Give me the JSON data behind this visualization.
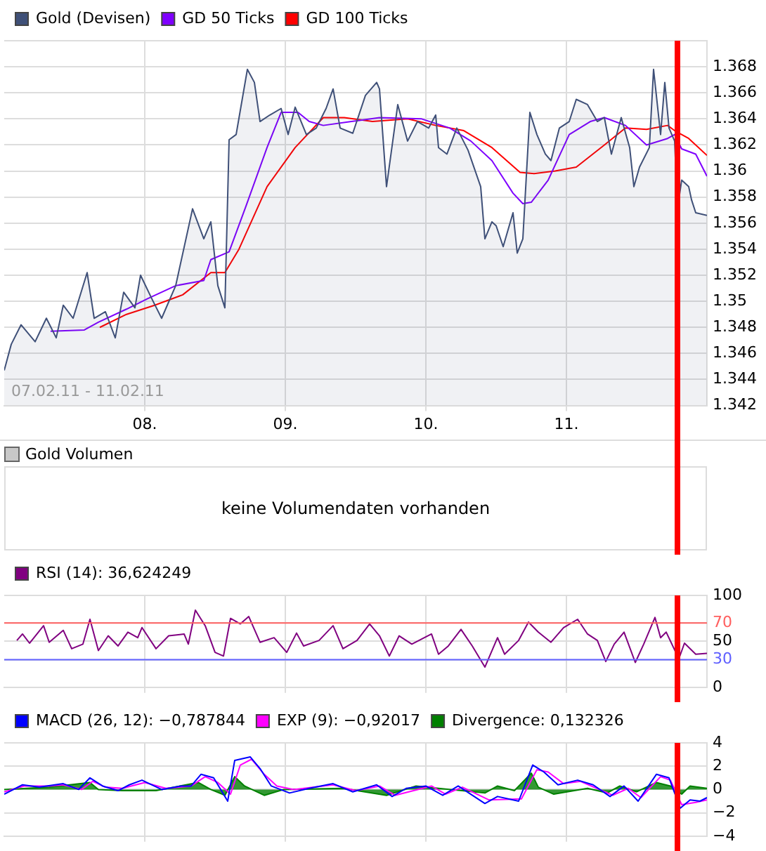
{
  "chart_data": [
    {
      "type": "line",
      "legend": "top left",
      "grid": true,
      "xlim": [
        7,
        12
      ],
      "xticks": [
        {
          "value": 8,
          "label": "08."
        },
        {
          "value": 9,
          "label": "09."
        },
        {
          "value": 10,
          "label": "10."
        },
        {
          "value": 11,
          "label": "11."
        }
      ],
      "ylim": [
        1.342,
        1.37
      ],
      "yticks": [
        1.342,
        1.344,
        1.346,
        1.348,
        1.35,
        1.352,
        1.354,
        1.356,
        1.358,
        1.36,
        1.362,
        1.364,
        1.366,
        1.368,
        {
          "value": 1.37,
          "label": null
        }
      ],
      "annotations": [
        "07.02.11 - 11.02.11"
      ],
      "ref_lines": [
        {
          "axis": "x",
          "value": 11.79,
          "color": "#ff0000"
        }
      ],
      "series": [
        {
          "name": "Gold (Devisen)",
          "type": "area",
          "color": "#3f5078",
          "x": [
            7.0,
            7.05,
            7.12,
            7.22,
            7.3,
            7.37,
            7.42,
            7.49,
            7.59,
            7.64,
            7.72,
            7.79,
            7.85,
            7.93,
            7.97,
            8.05,
            8.12,
            8.22,
            8.34,
            8.42,
            8.47,
            8.52,
            8.57,
            8.6,
            8.65,
            8.69,
            8.73,
            8.78,
            8.82,
            8.89,
            8.97,
            9.02,
            9.07,
            9.15,
            9.22,
            9.29,
            9.34,
            9.39,
            9.48,
            9.57,
            9.65,
            9.67,
            9.72,
            9.8,
            9.87,
            9.94,
            10.02,
            10.07,
            10.09,
            10.15,
            10.22,
            10.3,
            10.39,
            10.42,
            10.47,
            10.5,
            10.55,
            10.62,
            10.65,
            10.69,
            10.74,
            10.79,
            10.85,
            10.89,
            10.95,
            11.02,
            11.07,
            11.15,
            11.22,
            11.27,
            11.32,
            11.39,
            11.45,
            11.48,
            11.52,
            11.59,
            11.62,
            11.67,
            11.7,
            11.73,
            11.77,
            11.79,
            11.82,
            11.87,
            11.89,
            11.92,
            12.0
          ],
          "values": [
            1.3447,
            1.3467,
            1.3482,
            1.3469,
            1.3487,
            1.3472,
            1.3497,
            1.3487,
            1.3522,
            1.3487,
            1.3492,
            1.3472,
            1.3507,
            1.3495,
            1.352,
            1.3502,
            1.3487,
            1.3512,
            1.3571,
            1.3548,
            1.3561,
            1.3512,
            1.3495,
            1.3624,
            1.3628,
            1.3653,
            1.3678,
            1.3668,
            1.3638,
            1.3643,
            1.3648,
            1.3628,
            1.3649,
            1.3628,
            1.3633,
            1.3648,
            1.3663,
            1.3633,
            1.3629,
            1.3658,
            1.3668,
            1.3663,
            1.3588,
            1.3651,
            1.3623,
            1.3638,
            1.3633,
            1.3643,
            1.3618,
            1.3613,
            1.3633,
            1.3616,
            1.3588,
            1.3548,
            1.3561,
            1.3558,
            1.3542,
            1.3568,
            1.3537,
            1.3548,
            1.3645,
            1.3628,
            1.3613,
            1.3608,
            1.3633,
            1.3638,
            1.3655,
            1.3651,
            1.3638,
            1.3641,
            1.3613,
            1.3641,
            1.3618,
            1.3588,
            1.3603,
            1.3618,
            1.3678,
            1.3628,
            1.3668,
            1.3633,
            1.3623,
            1.3571,
            1.3593,
            1.3588,
            1.3578,
            1.3568,
            1.3566
          ]
        },
        {
          "name": "GD 50 Ticks",
          "color": "#7f00ff",
          "x": [
            7.33,
            7.57,
            7.67,
            7.87,
            8.02,
            8.22,
            8.42,
            8.47,
            8.6,
            8.72,
            8.87,
            8.97,
            9.09,
            9.17,
            9.27,
            9.47,
            9.67,
            9.97,
            10.17,
            10.32,
            10.47,
            10.62,
            10.69,
            10.75,
            10.87,
            11.02,
            11.17,
            11.27,
            11.42,
            11.57,
            11.72,
            11.77,
            11.82,
            11.92,
            12.0
          ],
          "values": [
            1.3477,
            1.3478,
            1.3484,
            1.3494,
            1.3502,
            1.3512,
            1.3516,
            1.3532,
            1.3538,
            1.3573,
            1.3618,
            1.3645,
            1.3645,
            1.3638,
            1.3635,
            1.3638,
            1.3641,
            1.364,
            1.3633,
            1.3623,
            1.3608,
            1.3583,
            1.3575,
            1.3576,
            1.3593,
            1.3628,
            1.3638,
            1.3641,
            1.3635,
            1.362,
            1.3625,
            1.3628,
            1.3617,
            1.3613,
            1.3596
          ]
        },
        {
          "name": "GD 100 Ticks",
          "color": "#ff0000",
          "x": [
            7.68,
            7.87,
            8.07,
            8.27,
            8.47,
            8.57,
            8.67,
            8.87,
            9.07,
            9.27,
            9.42,
            9.62,
            9.87,
            10.07,
            10.27,
            10.47,
            10.67,
            10.77,
            10.92,
            11.07,
            11.27,
            11.42,
            11.57,
            11.72,
            11.77,
            11.87,
            12.0
          ],
          "values": [
            1.348,
            1.349,
            1.3497,
            1.3505,
            1.3522,
            1.3522,
            1.354,
            1.3588,
            1.3618,
            1.3641,
            1.3641,
            1.3638,
            1.364,
            1.3635,
            1.3631,
            1.3618,
            1.3599,
            1.3598,
            1.36,
            1.3603,
            1.362,
            1.3633,
            1.3632,
            1.3635,
            1.3631,
            1.3625,
            1.3612
          ]
        }
      ]
    },
    {
      "type": "other",
      "title": "Gold Volumen",
      "annotations": [
        "keine Volumendaten vorhanden"
      ]
    },
    {
      "type": "line",
      "legend": "top left",
      "grid": true,
      "tick_labels": "y",
      "xlim": [
        7,
        12
      ],
      "xticks": [
        {
          "value": 8,
          "label": null
        },
        {
          "value": 9,
          "label": null
        },
        {
          "value": 10,
          "label": null
        },
        {
          "value": 11,
          "label": null
        }
      ],
      "ylim": [
        0,
        100
      ],
      "yticks": [
        0,
        30,
        50,
        70,
        100
      ],
      "ref_lines": [
        {
          "axis": "y",
          "value": 70,
          "color": "#ff6060"
        },
        {
          "axis": "y",
          "value": 30,
          "color": "#6060ff"
        },
        {
          "axis": "x",
          "value": 11.79,
          "color": "#ff0000"
        }
      ],
      "series": [
        {
          "name": "RSI (14): 36,624249",
          "color": "#800080",
          "x": [
            7.09,
            7.13,
            7.18,
            7.28,
            7.32,
            7.42,
            7.48,
            7.56,
            7.61,
            7.67,
            7.74,
            7.81,
            7.88,
            7.95,
            7.98,
            8.08,
            8.17,
            8.28,
            8.31,
            8.36,
            8.43,
            8.5,
            8.56,
            8.61,
            8.68,
            8.74,
            8.82,
            8.92,
            9.01,
            9.08,
            9.13,
            9.24,
            9.34,
            9.41,
            9.51,
            9.6,
            9.67,
            9.74,
            9.81,
            9.9,
            10.04,
            10.09,
            10.16,
            10.25,
            10.33,
            10.42,
            10.51,
            10.56,
            10.66,
            10.73,
            10.8,
            10.89,
            10.98,
            11.08,
            11.15,
            11.22,
            11.28,
            11.34,
            11.41,
            11.49,
            11.55,
            11.63,
            11.67,
            11.71,
            11.8,
            11.84,
            11.92,
            12.0
          ],
          "values": [
            51,
            58,
            48,
            67,
            49,
            62,
            42,
            47,
            74,
            40,
            56,
            45,
            60,
            54,
            65,
            42,
            56,
            58,
            47,
            84,
            67,
            38,
            34,
            75,
            69,
            77,
            49,
            54,
            38,
            59,
            45,
            51,
            67,
            42,
            51,
            69,
            56,
            34,
            56,
            47,
            58,
            36,
            45,
            63,
            45,
            22,
            54,
            36,
            51,
            71,
            60,
            49,
            65,
            74,
            58,
            51,
            28,
            47,
            60,
            27,
            47,
            76,
            54,
            60,
            31,
            48,
            36,
            37
          ]
        }
      ]
    },
    {
      "type": "line",
      "legend": "top left",
      "grid": true,
      "tick_labels": "y",
      "xlim": [
        7,
        12
      ],
      "xticks": [
        {
          "value": 8,
          "label": null
        },
        {
          "value": 9,
          "label": null
        },
        {
          "value": 10,
          "label": null
        },
        {
          "value": 11,
          "label": null
        }
      ],
      "ylim": [
        -4,
        4
      ],
      "yticks": [
        {
          "value": -4,
          "label": "−4"
        },
        {
          "value": -2,
          "label": "−2"
        },
        0,
        2,
        4
      ],
      "ref_lines": [
        {
          "axis": "x",
          "value": 11.79,
          "color": "#ff0000"
        }
      ],
      "series": [
        {
          "name": "MACD (26, 12): −0,787844",
          "color": "#0000ff",
          "x": [
            7.0,
            7.13,
            7.25,
            7.42,
            7.53,
            7.61,
            7.7,
            7.81,
            7.89,
            7.98,
            8.12,
            8.26,
            8.33,
            8.4,
            8.49,
            8.59,
            8.64,
            8.75,
            8.82,
            8.9,
            9.03,
            9.17,
            9.34,
            9.48,
            9.65,
            9.76,
            9.86,
            10.0,
            10.12,
            10.23,
            10.42,
            10.51,
            10.66,
            10.76,
            10.84,
            10.94,
            11.08,
            11.19,
            11.31,
            11.41,
            11.51,
            11.64,
            11.73,
            11.81,
            11.88,
            11.95,
            12.0
          ],
          "values": [
            -0.4,
            0.4,
            0.2,
            0.5,
            0,
            1,
            0.3,
            -0.1,
            0.4,
            0.8,
            0,
            0.3,
            0.3,
            1.3,
            1,
            -1,
            2.5,
            2.8,
            1.8,
            0.3,
            -0.3,
            0.1,
            0.5,
            -0.2,
            0.4,
            -0.6,
            0.1,
            0.3,
            -0.5,
            0.3,
            -1.2,
            -0.6,
            -1,
            2.1,
            1.5,
            0.4,
            0.8,
            0.4,
            -0.6,
            0.3,
            -1,
            1.3,
            1,
            -1.6,
            -0.9,
            -1,
            -0.7
          ]
        },
        {
          "name": "EXP (9): −0,92017",
          "color": "#ff00ff",
          "x": [
            7.0,
            7.14,
            7.32,
            7.42,
            7.55,
            7.63,
            7.72,
            7.84,
            8.0,
            8.15,
            8.33,
            8.43,
            8.52,
            8.61,
            8.68,
            8.76,
            8.85,
            8.94,
            9.06,
            9.34,
            9.5,
            9.67,
            9.78,
            10.04,
            10.14,
            10.26,
            10.45,
            10.68,
            10.79,
            10.87,
            10.98,
            11.1,
            11.33,
            11.44,
            11.53,
            11.67,
            11.74,
            11.82,
            11.92,
            12.0
          ],
          "values": [
            -0.2,
            0.3,
            0.3,
            0.4,
            0,
            0.7,
            0.2,
            0.1,
            0.6,
            0.1,
            0.3,
            1.1,
            0.6,
            -0.4,
            2.1,
            2.6,
            1.3,
            0.3,
            0,
            0.4,
            -0.1,
            0.3,
            -0.5,
            0.3,
            -0.4,
            0.2,
            -0.9,
            -0.8,
            1.7,
            1.5,
            0.5,
            0.7,
            -0.5,
            0.1,
            -0.7,
            1.1,
            0.8,
            -1.3,
            -1.1,
            -0.9
          ]
        },
        {
          "name": "Divergence: 0,132326",
          "type": "area",
          "color": "#008000",
          "x": [
            7.0,
            7.32,
            7.61,
            7.67,
            7.84,
            8.08,
            8.38,
            8.47,
            8.57,
            8.64,
            8.71,
            8.85,
            8.99,
            9.41,
            9.72,
            9.93,
            10.42,
            10.51,
            10.63,
            10.75,
            10.8,
            10.91,
            11.15,
            11.29,
            11.38,
            11.5,
            11.64,
            11.74,
            11.82,
            11.88,
            12.0
          ],
          "values": [
            0,
            0.2,
            0.6,
            0,
            -0.1,
            -0.1,
            0.6,
            0,
            -0.5,
            1.1,
            0.3,
            -0.5,
            0,
            0.1,
            -0.5,
            0.3,
            -0.3,
            0.3,
            -0.1,
            1.4,
            0.2,
            -0.4,
            0.1,
            -0.3,
            0.3,
            -0.2,
            0.6,
            0.3,
            -0.4,
            0.3,
            0.1
          ]
        }
      ]
    }
  ]
}
